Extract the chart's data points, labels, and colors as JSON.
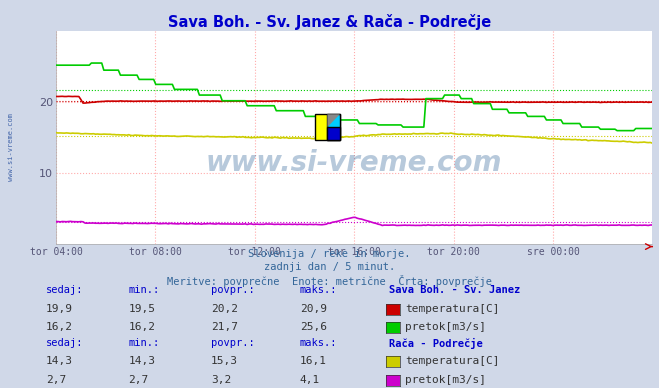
{
  "title": "Sava Boh. - Sv. Janez & Rača - Podrečje",
  "title_color": "#0000cc",
  "bg_color": "#d0d8e8",
  "plot_bg_color": "#ffffff",
  "grid_color": "#ffaaaa",
  "watermark_text": "www.si-vreme.com",
  "watermark_color": "#336699",
  "watermark_alpha": 0.35,
  "left_label": "www.si-vreme.com",
  "left_label_color": "#4466aa",
  "subtitle1": "Slovenija / reke in morje.",
  "subtitle2": "zadnji dan / 5 minut.",
  "subtitle3": "Meritve: povprečne  Enote: metrične  Črta: povprečje",
  "subtitle_color": "#336699",
  "xtick_labels": [
    "tor 04:00",
    "tor 08:00",
    "tor 12:00",
    "tor 16:00",
    "tor 20:00",
    "sre 00:00"
  ],
  "xtick_positions": [
    0.0,
    0.1667,
    0.3333,
    0.5,
    0.6667,
    0.8333
  ],
  "ytick_labels": [
    "10",
    "20"
  ],
  "ytick_positions": [
    10,
    20
  ],
  "ymin": 0,
  "ymax": 30,
  "n_points": 288,
  "sava_temp_color": "#cc0000",
  "sava_pretok_color": "#00cc00",
  "raca_temp_color": "#cccc00",
  "raca_pretok_color": "#cc00cc",
  "legend1_station": "Sava Boh. - Sv. Janez",
  "legend1_sedaj": [
    "19,9",
    "16,2"
  ],
  "legend1_min": [
    "19,5",
    "16,2"
  ],
  "legend1_povpr": [
    "20,2",
    "21,7"
  ],
  "legend1_maks": [
    "20,9",
    "25,6"
  ],
  "legend1_labels": [
    "temperatura[C]",
    "pretok[m3/s]"
  ],
  "legend1_colors": [
    "#cc0000",
    "#00cc00"
  ],
  "legend2_station": "Rača - Podrečje",
  "legend2_sedaj": [
    "14,3",
    "2,7"
  ],
  "legend2_min": [
    "14,3",
    "2,7"
  ],
  "legend2_povpr": [
    "15,3",
    "3,2"
  ],
  "legend2_maks": [
    "16,1",
    "4,1"
  ],
  "legend2_labels": [
    "temperatura[C]",
    "pretok[m3/s]"
  ],
  "legend2_colors": [
    "#cccc00",
    "#cc00cc"
  ],
  "legend_header_color": "#0000cc",
  "legend_value_color": "#333333",
  "icon_yellow": "#ffff00",
  "icon_cyan": "#00ccff",
  "icon_blue": "#0000cc",
  "icon_gray": "#888888"
}
